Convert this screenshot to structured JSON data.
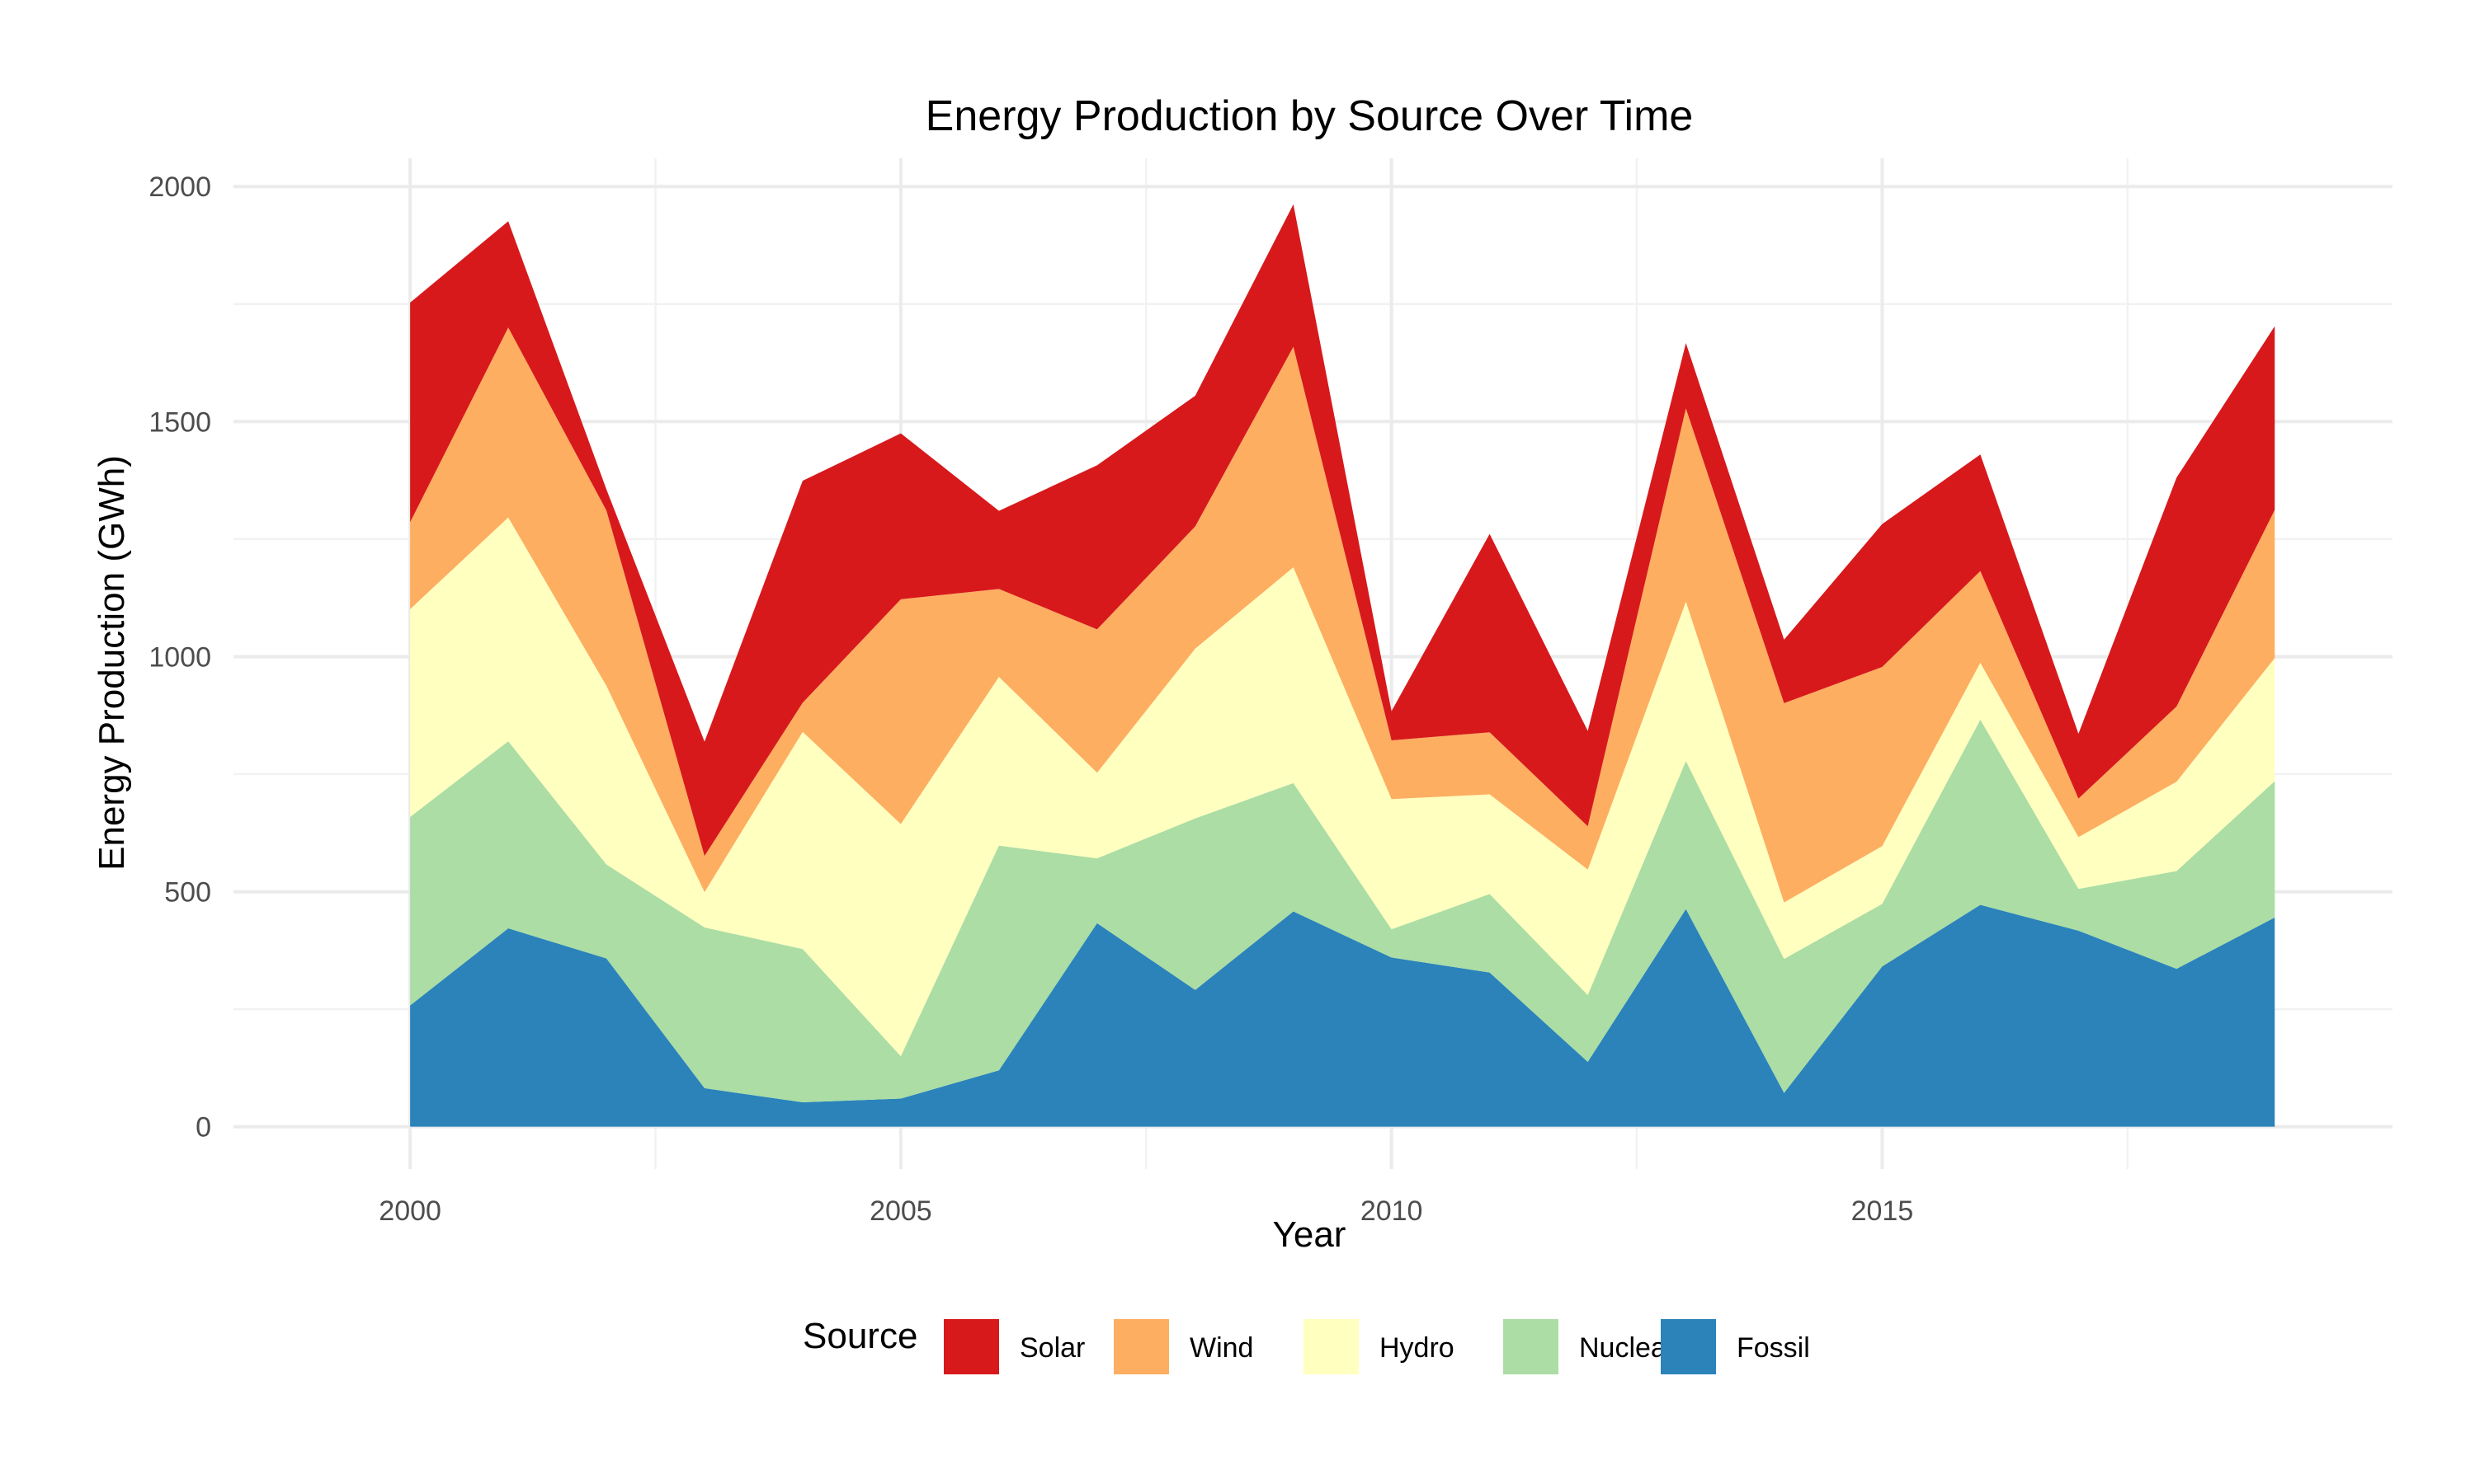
{
  "chart_data": {
    "type": "area",
    "stacked": true,
    "title": "Energy Production by Source Over Time",
    "xlabel": "Year",
    "ylabel": "Energy Production (GWh)",
    "xlim": [
      1998.2,
      2020.2
    ],
    "ylim": [
      -90,
      2060
    ],
    "x_ticks": [
      2000,
      2005,
      2010,
      2015
    ],
    "y_ticks": [
      0,
      500,
      1000,
      1500,
      2000
    ],
    "grid": true,
    "legend_position": "bottom",
    "legend_title": "Source",
    "x": [
      2000,
      2001,
      2002,
      2003,
      2004,
      2005,
      2006,
      2007,
      2008,
      2009,
      2010,
      2011,
      2012,
      2013,
      2014,
      2015,
      2016,
      2017,
      2018,
      2019
    ],
    "series": [
      {
        "name": "Fossil",
        "color": "#2b83ba",
        "values": [
          258,
          422,
          358,
          82,
          52,
          60,
          120,
          433,
          291,
          458,
          360,
          328,
          138,
          463,
          72,
          341,
          472,
          417,
          336,
          445
        ]
      },
      {
        "name": "Nuclear",
        "color": "#abdda4",
        "values": [
          401,
          398,
          200,
          342,
          326,
          90,
          478,
          138,
          365,
          273,
          60,
          167,
          142,
          315,
          285,
          133,
          394,
          89,
          208,
          290
        ]
      },
      {
        "name": "Hydro",
        "color": "#ffffbf",
        "values": [
          442,
          476,
          380,
          75,
          462,
          494,
          359,
          182,
          361,
          459,
          277,
          212,
          267,
          339,
          120,
          123,
          121,
          110,
          190,
          262
        ]
      },
      {
        "name": "Wind",
        "color": "#fdae61",
        "values": [
          185,
          404,
          373,
          77,
          62,
          478,
          187,
          305,
          260,
          469,
          125,
          132,
          92,
          411,
          424,
          381,
          195,
          82,
          160,
          315
        ]
      },
      {
        "name": "Solar",
        "color": "#d7191c",
        "values": [
          467,
          226,
          45,
          243,
          472,
          353,
          166,
          349,
          278,
          303,
          62,
          422,
          203,
          139,
          135,
          304,
          248,
          138,
          487,
          391
        ]
      }
    ]
  }
}
